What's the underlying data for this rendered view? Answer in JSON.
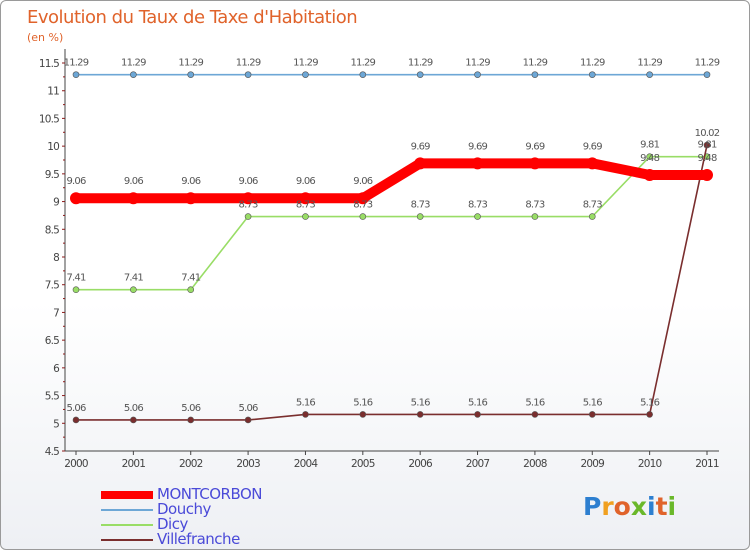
{
  "title": "Evolution du Taux de Taxe d'Habitation",
  "subtitle": "(en %)",
  "logo": {
    "text": "Proxiti",
    "colors": [
      "#2d7fd0",
      "#f0a020",
      "#e0632b",
      "#6ab82a",
      "#2d7fd0",
      "#e0632b",
      "#6ab82a"
    ]
  },
  "chart_data": {
    "type": "line",
    "title": "Evolution du Taux de Taxe d'Habitation",
    "ylabel": "(en %)",
    "xlabel": "",
    "categories": [
      "2000",
      "2001",
      "2002",
      "2003",
      "2004",
      "2005",
      "2006",
      "2007",
      "2008",
      "2009",
      "2010",
      "2011"
    ],
    "ylim": [
      4.5,
      11.5
    ],
    "yticks": [
      "4.5",
      "5",
      "5.5",
      "6",
      "6.5",
      "7",
      "7.5",
      "8",
      "8.5",
      "9",
      "9.5",
      "10",
      "10.5",
      "11",
      "11.5"
    ],
    "grid": false,
    "series": [
      {
        "name": "MONTCORBON",
        "color": "#ff0000",
        "values": [
          9.06,
          9.06,
          9.06,
          9.06,
          9.06,
          9.06,
          9.69,
          9.69,
          9.69,
          9.69,
          9.48,
          9.48
        ],
        "labels": [
          "9.06",
          "9.06",
          "9.06",
          "9.06",
          "9.06",
          "9.06",
          "9.69",
          "9.69",
          "9.69",
          "9.69",
          "",
          ""
        ]
      },
      {
        "name": "Douchy",
        "color": "#6da7d6",
        "values": [
          11.29,
          11.29,
          11.29,
          11.29,
          11.29,
          11.29,
          11.29,
          11.29,
          11.29,
          11.29,
          11.29,
          11.29
        ],
        "labels": [
          "11.29",
          "11.29",
          "11.29",
          "11.29",
          "11.29",
          "11.29",
          "11.29",
          "11.29",
          "11.29",
          "11.29",
          "11.29",
          "11.29"
        ]
      },
      {
        "name": "Dicy",
        "color": "#99dd66",
        "values": [
          7.41,
          7.41,
          7.41,
          8.73,
          8.73,
          8.73,
          8.73,
          8.73,
          8.73,
          8.73,
          9.81,
          9.81
        ],
        "labels": [
          "7.41",
          "7.41",
          "7.41",
          "8.73",
          "8.73",
          "8.73",
          "8.73",
          "8.73",
          "8.73",
          "8.73",
          "9.81",
          "9.81"
        ]
      },
      {
        "name": "Villefranche",
        "color": "#7a2e2e",
        "values": [
          5.06,
          5.06,
          5.06,
          5.06,
          5.16,
          5.16,
          5.16,
          5.16,
          5.16,
          5.16,
          5.16,
          10.02
        ],
        "labels": [
          "5.06",
          "5.06",
          "5.06",
          "5.06",
          "5.16",
          "5.16",
          "5.16",
          "5.16",
          "5.16",
          "5.16",
          "5.16",
          "10.02"
        ]
      }
    ],
    "extra_labels": [
      {
        "text": "9.48",
        "category_index": 10,
        "series": "MONTCORBON"
      },
      {
        "text": "9.48",
        "category_index": 11,
        "series": "MONTCORBON"
      }
    ]
  }
}
